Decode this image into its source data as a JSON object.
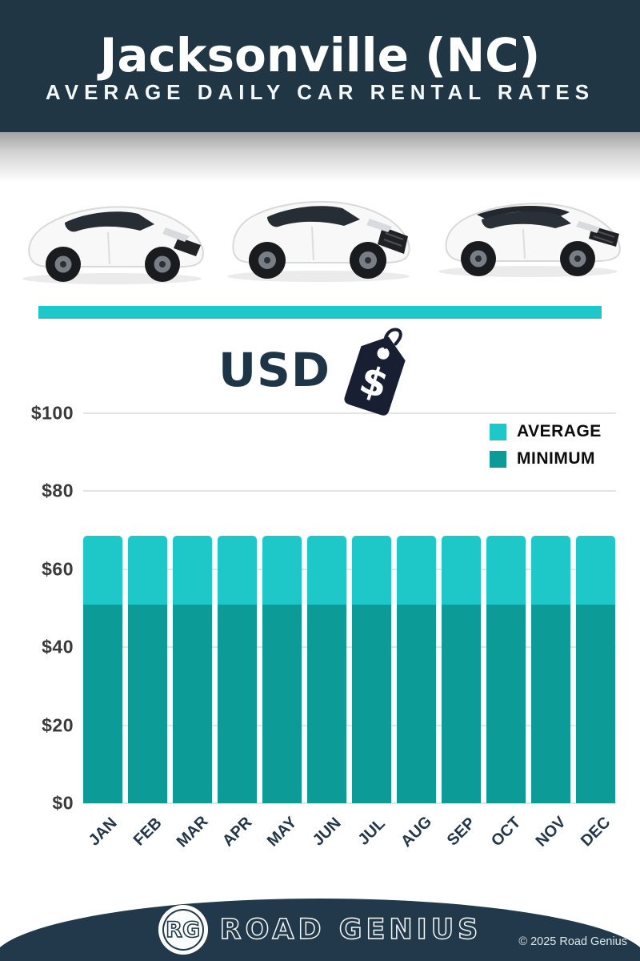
{
  "header": {
    "title": "Jacksonville (NC)",
    "subtitle": "AVERAGE DAILY CAR RENTAL RATES"
  },
  "currency": {
    "label": "USD",
    "tag_icon": "price-tag-dollar",
    "tag_symbol": "$"
  },
  "images": {
    "car_1": "white-hatchback-car",
    "car_2": "white-suv-car",
    "car_3": "white-suv-black-roof-car"
  },
  "chart_data": {
    "type": "bar",
    "title": "Jacksonville (NC) Average Daily Car Rental Rates",
    "currency": "USD",
    "categories": [
      "JAN",
      "FEB",
      "MAR",
      "APR",
      "MAY",
      "JUN",
      "JUL",
      "AUG",
      "SEP",
      "OCT",
      "NOV",
      "DEC"
    ],
    "series": [
      {
        "name": "AVERAGE",
        "color": "#1ec8c8",
        "values": [
          68.5,
          68.5,
          68.5,
          68.5,
          68.5,
          68.5,
          68.5,
          68.5,
          68.5,
          68.5,
          68.5,
          68.5
        ]
      },
      {
        "name": "MINIMUM",
        "color": "#0d9b97",
        "values": [
          51,
          51,
          51,
          51,
          51,
          51,
          51,
          51,
          51,
          51,
          51,
          51
        ]
      }
    ],
    "yticks": [
      {
        "label": "$0",
        "value": 0
      },
      {
        "label": "$20",
        "value": 20
      },
      {
        "label": "$40",
        "value": 40
      },
      {
        "label": "$60",
        "value": 60
      },
      {
        "label": "$80",
        "value": 80
      },
      {
        "label": "$100",
        "value": 100
      }
    ],
    "ylim": [
      0,
      100
    ],
    "grid": true,
    "legend_position": "top-right"
  },
  "footer": {
    "logo_text": "RG",
    "brand": "ROAD GENIUS",
    "copyright": "© 2025 Road Genius"
  },
  "colors": {
    "header_bg": "#203645",
    "accent_teal": "#1ec8c8",
    "average_bar": "#1ec8c8",
    "minimum_bar": "#0d9b97",
    "navy_text": "#1d3547",
    "grid_line": "#e3e3e3",
    "tag_fill": "#181f33",
    "footer_bg": "#21394a"
  }
}
